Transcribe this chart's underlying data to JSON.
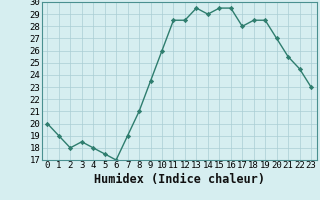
{
  "xlabel": "Humidex (Indice chaleur)",
  "ylabel": "",
  "x": [
    0,
    1,
    2,
    3,
    4,
    5,
    6,
    7,
    8,
    9,
    10,
    11,
    12,
    13,
    14,
    15,
    16,
    17,
    18,
    19,
    20,
    21,
    22,
    23
  ],
  "y": [
    20,
    19,
    18,
    18.5,
    18,
    17.5,
    17,
    19,
    21,
    23.5,
    26,
    28.5,
    28.5,
    29.5,
    29,
    29.5,
    29.5,
    28,
    28.5,
    28.5,
    27,
    25.5,
    24.5,
    23
  ],
  "line_color": "#2e7d6e",
  "marker": "D",
  "marker_size": 2.2,
  "bg_color": "#d6eef0",
  "grid_color": "#aacdd4",
  "spine_color": "#4a9090",
  "ylim": [
    17,
    30
  ],
  "yticks": [
    17,
    18,
    19,
    20,
    21,
    22,
    23,
    24,
    25,
    26,
    27,
    28,
    29,
    30
  ],
  "xticks": [
    0,
    1,
    2,
    3,
    4,
    5,
    6,
    7,
    8,
    9,
    10,
    11,
    12,
    13,
    14,
    15,
    16,
    17,
    18,
    19,
    20,
    21,
    22,
    23
  ],
  "tick_label_fontsize": 6.5,
  "xlabel_fontsize": 8.5,
  "line_width": 1.0
}
